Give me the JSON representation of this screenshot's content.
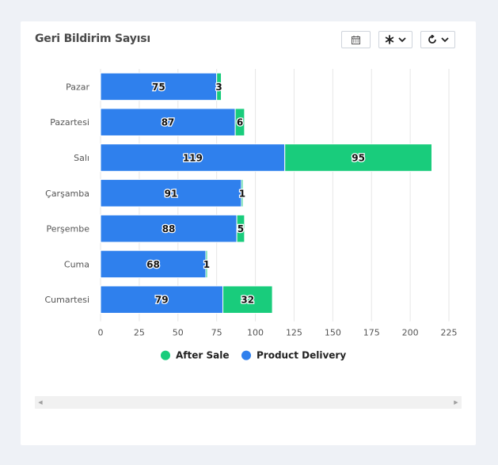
{
  "card": {
    "title": "Geri Bildirim Sayısı"
  },
  "toolbar": {
    "icons": [
      "calendar-icon",
      "asterisk-icon",
      "chevron-down-icon",
      "refresh-icon"
    ]
  },
  "colors": {
    "product_delivery": "#2f80ed",
    "after_sale": "#19cc7c",
    "grid": "#e6e6e6",
    "axis_text": "#555555"
  },
  "chart_data": {
    "type": "bar",
    "orientation": "horizontal",
    "stacked": true,
    "categories": [
      "Pazar",
      "Pazartesi",
      "Salı",
      "Çarşamba",
      "Perşembe",
      "Cuma",
      "Cumartesi"
    ],
    "series": [
      {
        "name": "Product Delivery",
        "values": [
          75,
          87,
          119,
          91,
          88,
          68,
          79
        ],
        "color": "#2f80ed"
      },
      {
        "name": "After Sale",
        "values": [
          3,
          6,
          95,
          1,
          5,
          1,
          32
        ],
        "color": "#19cc7c"
      }
    ],
    "xlim": [
      0,
      225
    ],
    "xticks": [
      0,
      25,
      50,
      75,
      100,
      125,
      150,
      175,
      200,
      225
    ],
    "grid": true,
    "legend": {
      "placement": "bottom",
      "order": [
        "After Sale",
        "Product Delivery"
      ]
    }
  }
}
